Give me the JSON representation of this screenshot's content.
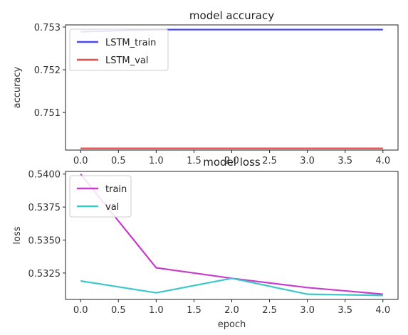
{
  "chart_data": [
    {
      "type": "line",
      "title": "model accuracy",
      "xlabel": "",
      "ylabel": "accuracy",
      "x": [
        0,
        1,
        2,
        3,
        4
      ],
      "xticks": [
        "0.0",
        "0.5",
        "1.0",
        "1.5",
        "2.0",
        "2.5",
        "3.0",
        "3.5",
        "4.0"
      ],
      "xlim": [
        -0.2,
        4.2
      ],
      "yticks": [
        "0.751",
        "0.752",
        "0.753"
      ],
      "ylim": [
        0.75012,
        0.75305
      ],
      "grid": false,
      "legend": "top-left",
      "series": [
        {
          "name": "LSTM_train",
          "color": "#4a4af2",
          "values": [
            0.75289,
            0.75294,
            0.75294,
            0.75294,
            0.75294
          ]
        },
        {
          "name": "LSTM_val",
          "color": "#f04a4a",
          "values": [
            0.75016,
            0.75016,
            0.75016,
            0.75016,
            0.75016
          ]
        }
      ]
    },
    {
      "type": "line",
      "title": "model loss",
      "xlabel": "epoch",
      "ylabel": "loss",
      "x": [
        0,
        1,
        2,
        3,
        4
      ],
      "xticks": [
        "0.0",
        "0.5",
        "1.0",
        "1.5",
        "2.0",
        "2.5",
        "3.0",
        "3.5",
        "4.0"
      ],
      "xlim": [
        -0.2,
        4.2
      ],
      "yticks": [
        "0.5325",
        "0.5350",
        "0.5375",
        "0.5400"
      ],
      "ylim": [
        0.5305,
        0.5402
      ],
      "grid": false,
      "legend": "top-left",
      "series": [
        {
          "name": "train",
          "color": "#c83ccc",
          "values": [
            0.54,
            0.5329,
            0.5321,
            0.5314,
            0.5309
          ]
        },
        {
          "name": "val",
          "color": "#3cc8c8",
          "values": [
            0.5319,
            0.531,
            0.5321,
            0.5309,
            0.5308
          ]
        }
      ]
    }
  ]
}
